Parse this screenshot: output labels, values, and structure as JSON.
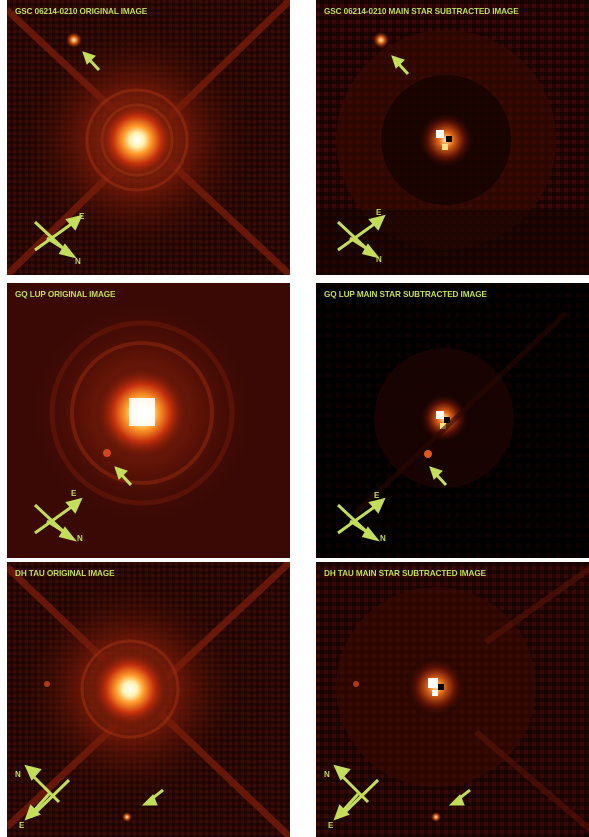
{
  "panels": [
    {
      "title": "GSC 06214-0210 ORIGINAL IMAGE",
      "compass": {
        "e": "E",
        "n": "N"
      }
    },
    {
      "title": "GSC 06214-0210 MAIN STAR SUBTRACTED IMAGE",
      "compass": {
        "e": "E",
        "n": "N"
      }
    },
    {
      "title": "GQ LUP ORIGINAL IMAGE",
      "compass": {
        "e": "E",
        "n": "N"
      }
    },
    {
      "title": "GQ LUP MAIN STAR SUBTRACTED IMAGE",
      "compass": {
        "e": "E",
        "n": "N"
      }
    },
    {
      "title": "DH TAU ORIGINAL IMAGE",
      "compass": {
        "n": "N",
        "e": "E"
      }
    },
    {
      "title": "DH TAU MAIN STAR SUBTRACTED IMAGE",
      "compass": {
        "n": "N",
        "e": "E"
      }
    }
  ],
  "colors": {
    "label": "#c2de5a",
    "arrow": "#c2de5a",
    "dark_bg": "#250601",
    "black_bg": "#000000"
  }
}
